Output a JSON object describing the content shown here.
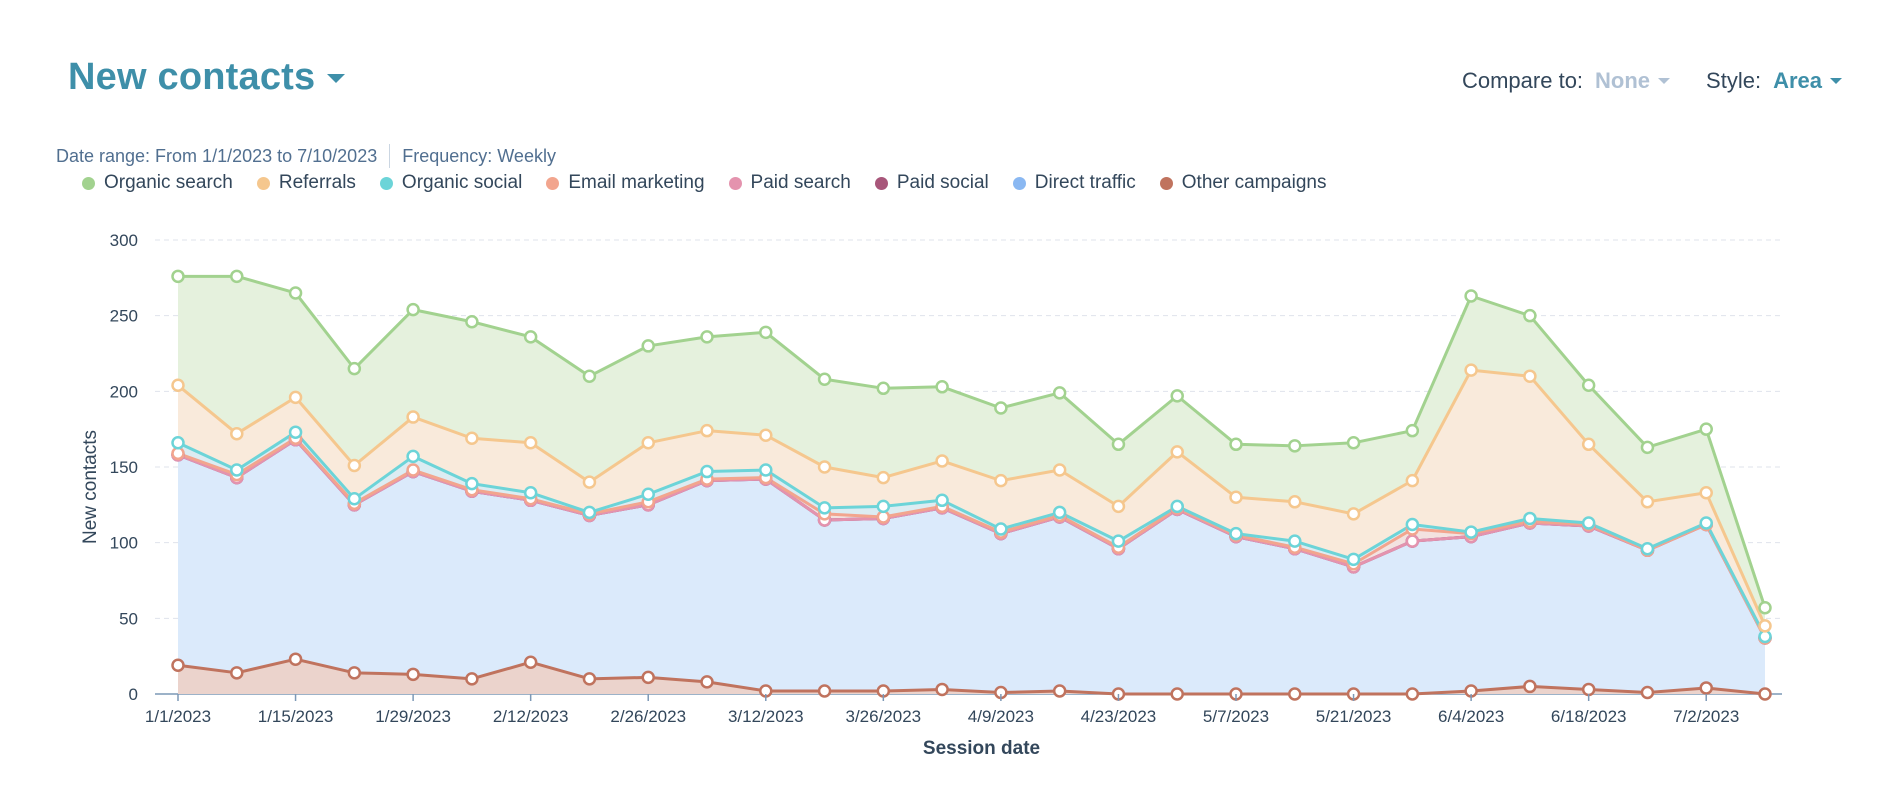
{
  "header": {
    "title": "New contacts",
    "compare_label": "Compare to:",
    "compare_value": "None",
    "style_label": "Style:",
    "style_value": "Area"
  },
  "meta": {
    "date_range": "Date range: From 1/1/2023 to 7/10/2023",
    "frequency": "Frequency: Weekly"
  },
  "colors": {
    "title": "#3e8fa9",
    "grid": "#dfe3eb",
    "axis": "#516f90"
  },
  "chart_data": {
    "type": "area",
    "stacked": true,
    "xlabel": "Session date",
    "ylabel": "New contacts",
    "ylim": [
      0,
      300
    ],
    "yticks": [
      0,
      50,
      100,
      150,
      200,
      250,
      300
    ],
    "grid": true,
    "legend_position": "top-left",
    "x": [
      "1/1/2023",
      "1/8/2023",
      "1/15/2023",
      "1/22/2023",
      "1/29/2023",
      "2/5/2023",
      "2/12/2023",
      "2/19/2023",
      "2/26/2023",
      "3/5/2023",
      "3/12/2023",
      "3/19/2023",
      "3/26/2023",
      "4/2/2023",
      "4/9/2023",
      "4/16/2023",
      "4/23/2023",
      "4/30/2023",
      "5/7/2023",
      "5/14/2023",
      "5/21/2023",
      "5/28/2023",
      "6/4/2023",
      "6/11/2023",
      "6/18/2023",
      "6/25/2023",
      "7/2/2023",
      "7/9/2023"
    ],
    "xtick_labels": [
      "1/1/2023",
      "1/15/2023",
      "1/29/2023",
      "2/12/2023",
      "2/26/2023",
      "3/12/2023",
      "3/26/2023",
      "4/9/2023",
      "4/23/2023",
      "5/7/2023",
      "5/21/2023",
      "6/4/2023",
      "6/18/2023",
      "7/2/2023"
    ],
    "stack_order": [
      "Other campaigns",
      "Direct traffic",
      "Paid social",
      "Paid search",
      "Email marketing",
      "Organic social",
      "Referrals",
      "Organic search"
    ],
    "series": [
      {
        "name": "Organic search",
        "color": "#a2d28f",
        "fill": "#e5f1dd",
        "values": [
          72,
          104,
          69,
          64,
          71,
          77,
          70,
          70,
          64,
          62,
          68,
          58,
          59,
          49,
          48,
          51,
          41,
          37,
          35,
          37,
          47,
          33,
          49,
          40,
          39,
          36,
          42,
          12
        ]
      },
      {
        "name": "Referrals",
        "color": "#f5c78e",
        "fill": "#f9eadb",
        "values": [
          38,
          24,
          23,
          22,
          26,
          30,
          33,
          20,
          34,
          27,
          23,
          27,
          19,
          26,
          32,
          28,
          23,
          36,
          24,
          26,
          30,
          29,
          107,
          94,
          52,
          31,
          20,
          7
        ]
      },
      {
        "name": "Organic social",
        "color": "#6cd4d8",
        "fill": "#dcecf2",
        "values": [
          7,
          3,
          4,
          3,
          9,
          4,
          4,
          1,
          5,
          5,
          5,
          4,
          7,
          4,
          2,
          2,
          4,
          1,
          1,
          4,
          3,
          3,
          1,
          2,
          1,
          1,
          1,
          1
        ]
      },
      {
        "name": "Email marketing",
        "color": "#f2a58e",
        "fill": "#f3e2e0",
        "values": [
          1,
          2,
          1,
          1,
          1,
          1,
          1,
          1,
          2,
          1,
          1,
          4,
          1,
          1,
          1,
          1,
          1,
          1,
          1,
          1,
          2,
          8,
          2,
          1,
          1,
          0,
          0,
          0
        ]
      },
      {
        "name": "Paid search",
        "color": "#e493ae",
        "fill": "#f3e2e9",
        "values": [
          0,
          0,
          0,
          0,
          0,
          0,
          0,
          0,
          0,
          0,
          0,
          0,
          0,
          0,
          0,
          0,
          0,
          0,
          0,
          0,
          0,
          0,
          0,
          0,
          0,
          0,
          0,
          0
        ]
      },
      {
        "name": "Paid social",
        "color": "#a8567a",
        "fill": "#ead9e2",
        "values": [
          0,
          0,
          0,
          0,
          0,
          0,
          0,
          0,
          0,
          0,
          0,
          0,
          0,
          0,
          0,
          0,
          0,
          0,
          0,
          0,
          0,
          0,
          0,
          0,
          0,
          0,
          0,
          0
        ]
      },
      {
        "name": "Direct traffic",
        "color": "#8ab8f2",
        "fill": "#dbeafb",
        "values": [
          139,
          129,
          145,
          111,
          134,
          124,
          107,
          108,
          114,
          133,
          140,
          113,
          114,
          120,
          105,
          115,
          96,
          122,
          104,
          96,
          84,
          101,
          102,
          108,
          108,
          94,
          108,
          37
        ]
      },
      {
        "name": "Other campaigns",
        "color": "#c0735e",
        "fill": "#ebd3cc",
        "values": [
          19,
          14,
          23,
          14,
          13,
          10,
          21,
          10,
          11,
          8,
          2,
          2,
          2,
          3,
          1,
          2,
          0,
          0,
          0,
          0,
          0,
          0,
          2,
          5,
          3,
          1,
          4,
          0
        ]
      }
    ]
  }
}
